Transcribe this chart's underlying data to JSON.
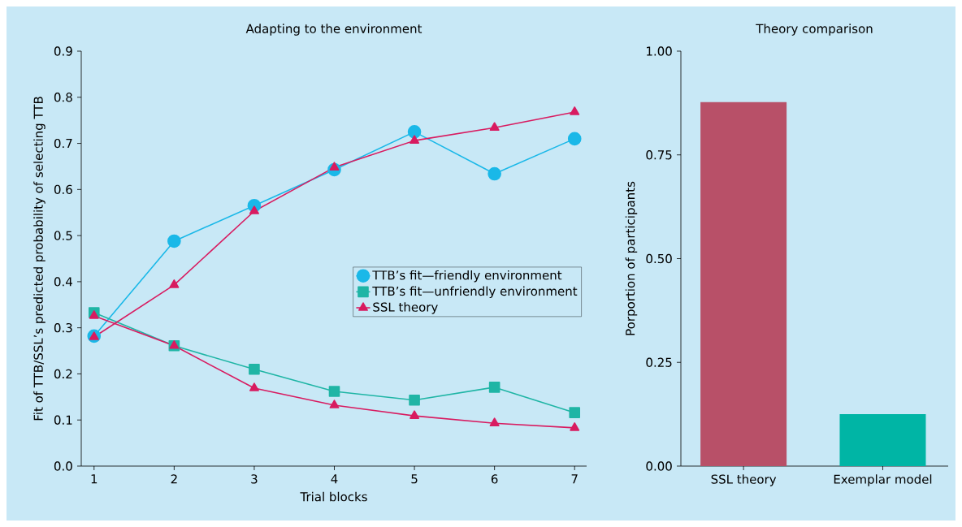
{
  "chart_data": [
    {
      "type": "line",
      "title": "Adapting to the environment",
      "xlabel": "Trial blocks",
      "ylabel": "Fit of TTB/SSL’s predicted probability of selecting TTB",
      "x": [
        1,
        2,
        3,
        4,
        5,
        6,
        7
      ],
      "xlim": [
        0.84,
        7.15
      ],
      "xticks": [
        1,
        2,
        3,
        4,
        5,
        6,
        7
      ],
      "ylim": [
        0,
        0.9
      ],
      "yticks": [
        {
          "value": 0,
          "label": "0.0"
        },
        {
          "value": 0.1,
          "label": "0.1"
        },
        {
          "value": 0.2,
          "label": "0.2"
        },
        {
          "value": 0.3,
          "label": "0.3"
        },
        {
          "value": 0.4,
          "label": "0.4"
        },
        {
          "value": 0.5,
          "label": "0.5"
        },
        {
          "value": 0.6,
          "label": "0.6"
        },
        {
          "value": 0.7,
          "label": "0.7"
        },
        {
          "value": 0.8,
          "label": "0.8"
        },
        {
          "value": 0.9,
          "label": "0.9"
        }
      ],
      "legend": "right",
      "series": [
        {
          "name": "TTB’s fit—friendly environment",
          "color": "#1ab8e8",
          "marker": "circle",
          "values": [
            0.282,
            0.488,
            0.565,
            0.643,
            0.725,
            0.634,
            0.71
          ]
        },
        {
          "name": "TTB’s fit—unfriendly environment",
          "color": "#1fb5a5",
          "marker": "square",
          "values": [
            0.333,
            0.261,
            0.21,
            0.162,
            0.143,
            0.171,
            0.116
          ]
        },
        {
          "name": "SSL theory",
          "color": "#d81b60",
          "marker": "triangle",
          "values": [
            0.28,
            0.393,
            0.553,
            0.648,
            0.706,
            0.734,
            0.768
          ]
        },
        {
          "color": "#d81b60",
          "marker": "triangle",
          "values": [
            0.326,
            0.261,
            0.169,
            0.132,
            0.109,
            0.093,
            0.083
          ]
        }
      ]
    },
    {
      "type": "bar",
      "title": "Theory comparison",
      "ylabel": "Porportion of participants",
      "categories": [
        "SSL theory",
        "Exemplar model"
      ],
      "values": [
        0.877,
        0.125
      ],
      "colors": [
        "#b85068",
        "#00b5a5"
      ],
      "ylim": [
        0,
        1
      ],
      "yticks": [
        {
          "value": 0,
          "label": "0.00"
        },
        {
          "value": 0.25,
          "label": "0.25"
        },
        {
          "value": 0.5,
          "label": "0.50"
        },
        {
          "value": 0.75,
          "label": "0.75"
        },
        {
          "value": 1,
          "label": "1.00"
        }
      ]
    }
  ]
}
